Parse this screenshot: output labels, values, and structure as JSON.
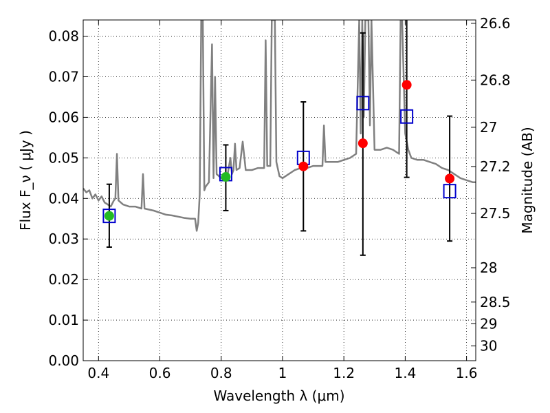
{
  "chart_data": {
    "type": "scatter",
    "xlabel": "Wavelength  λ (μm)",
    "ylabel": "Flux  F_ν  ( μJy )",
    "ylabel_right": "Magnitude (AB)",
    "xlim": [
      0.35,
      1.63
    ],
    "ylim": [
      0.0,
      0.084
    ],
    "grid": true,
    "x_ticks": [
      {
        "value": 0.4,
        "label": "0.4"
      },
      {
        "value": 0.6,
        "label": "0.6"
      },
      {
        "value": 0.8,
        "label": "0.8"
      },
      {
        "value": 1.0,
        "label": "1"
      },
      {
        "value": 1.2,
        "label": "1.2"
      },
      {
        "value": 1.4,
        "label": "1.4"
      },
      {
        "value": 1.6,
        "label": "1.6"
      }
    ],
    "y_ticks": [
      {
        "value": 0.0,
        "label": "0.00"
      },
      {
        "value": 0.01,
        "label": "0.01"
      },
      {
        "value": 0.02,
        "label": "0.02"
      },
      {
        "value": 0.03,
        "label": "0.03"
      },
      {
        "value": 0.04,
        "label": "0.04"
      },
      {
        "value": 0.05,
        "label": "0.05"
      },
      {
        "value": 0.06,
        "label": "0.06"
      },
      {
        "value": 0.07,
        "label": "0.07"
      },
      {
        "value": 0.08,
        "label": "0.08"
      }
    ],
    "right_ticks": [
      {
        "value": 26.6,
        "label": "26.6"
      },
      {
        "value": 26.8,
        "label": "26.8"
      },
      {
        "value": 27.0,
        "label": "27"
      },
      {
        "value": 27.2,
        "label": "27.2"
      },
      {
        "value": 27.5,
        "label": "27.5"
      },
      {
        "value": 28.0,
        "label": "28"
      },
      {
        "value": 28.5,
        "label": "28.5"
      },
      {
        "value": 29.0,
        "label": "29"
      },
      {
        "value": 30.0,
        "label": "30"
      }
    ],
    "series": [
      {
        "kind": "line",
        "color": "#808080",
        "points": [
          [
            0.35,
            0.0425
          ],
          [
            0.36,
            0.0415
          ],
          [
            0.37,
            0.042
          ],
          [
            0.38,
            0.04
          ],
          [
            0.39,
            0.041
          ],
          [
            0.4,
            0.0395
          ],
          [
            0.41,
            0.0405
          ],
          [
            0.42,
            0.039
          ],
          [
            0.43,
            0.0385
          ],
          [
            0.44,
            0.038
          ],
          [
            0.45,
            0.0395
          ],
          [
            0.455,
            0.04
          ],
          [
            0.46,
            0.051
          ],
          [
            0.465,
            0.0395
          ],
          [
            0.48,
            0.0385
          ],
          [
            0.5,
            0.038
          ],
          [
            0.52,
            0.038
          ],
          [
            0.54,
            0.0375
          ],
          [
            0.545,
            0.046
          ],
          [
            0.55,
            0.0375
          ],
          [
            0.58,
            0.037
          ],
          [
            0.6,
            0.0365
          ],
          [
            0.62,
            0.036
          ],
          [
            0.64,
            0.0358
          ],
          [
            0.66,
            0.0355
          ],
          [
            0.68,
            0.0352
          ],
          [
            0.7,
            0.035
          ],
          [
            0.715,
            0.035
          ],
          [
            0.72,
            0.032
          ],
          [
            0.725,
            0.034
          ],
          [
            0.73,
            0.041
          ],
          [
            0.735,
            0.084
          ],
          [
            0.74,
            0.084
          ],
          [
            0.745,
            0.042
          ],
          [
            0.75,
            0.043
          ],
          [
            0.76,
            0.044
          ],
          [
            0.77,
            0.078
          ],
          [
            0.775,
            0.045
          ],
          [
            0.78,
            0.07
          ],
          [
            0.785,
            0.046
          ],
          [
            0.8,
            0.045
          ],
          [
            0.82,
            0.0455
          ],
          [
            0.83,
            0.05
          ],
          [
            0.835,
            0.046
          ],
          [
            0.84,
            0.047
          ],
          [
            0.845,
            0.0535
          ],
          [
            0.85,
            0.047
          ],
          [
            0.86,
            0.0475
          ],
          [
            0.87,
            0.054
          ],
          [
            0.88,
            0.047
          ],
          [
            0.9,
            0.047
          ],
          [
            0.92,
            0.0475
          ],
          [
            0.94,
            0.0475
          ],
          [
            0.945,
            0.079
          ],
          [
            0.95,
            0.048
          ],
          [
            0.96,
            0.048
          ],
          [
            0.965,
            0.084
          ],
          [
            0.97,
            0.084
          ],
          [
            0.975,
            0.084
          ],
          [
            0.98,
            0.049
          ],
          [
            0.99,
            0.0455
          ],
          [
            1.0,
            0.045
          ],
          [
            1.02,
            0.046
          ],
          [
            1.04,
            0.047
          ],
          [
            1.06,
            0.0475
          ],
          [
            1.08,
            0.0475
          ],
          [
            1.1,
            0.048
          ],
          [
            1.12,
            0.048
          ],
          [
            1.13,
            0.048
          ],
          [
            1.135,
            0.058
          ],
          [
            1.14,
            0.049
          ],
          [
            1.16,
            0.049
          ],
          [
            1.18,
            0.049
          ],
          [
            1.2,
            0.0495
          ],
          [
            1.22,
            0.05
          ],
          [
            1.24,
            0.051
          ],
          [
            1.25,
            0.084
          ],
          [
            1.255,
            0.056
          ],
          [
            1.26,
            0.084
          ],
          [
            1.265,
            0.06
          ],
          [
            1.27,
            0.084
          ],
          [
            1.28,
            0.084
          ],
          [
            1.285,
            0.058
          ],
          [
            1.29,
            0.084
          ],
          [
            1.3,
            0.052
          ],
          [
            1.32,
            0.052
          ],
          [
            1.34,
            0.0525
          ],
          [
            1.36,
            0.052
          ],
          [
            1.38,
            0.051
          ],
          [
            1.385,
            0.084
          ],
          [
            1.39,
            0.084
          ],
          [
            1.4,
            0.056
          ],
          [
            1.41,
            0.052
          ],
          [
            1.42,
            0.05
          ],
          [
            1.44,
            0.0495
          ],
          [
            1.46,
            0.0495
          ],
          [
            1.48,
            0.049
          ],
          [
            1.5,
            0.0485
          ],
          [
            1.52,
            0.0475
          ],
          [
            1.54,
            0.047
          ],
          [
            1.56,
            0.046
          ],
          [
            1.58,
            0.045
          ],
          [
            1.6,
            0.0445
          ],
          [
            1.62,
            0.044
          ],
          [
            1.63,
            0.044
          ]
        ]
      },
      {
        "kind": "error_bars",
        "color": "#000000",
        "points": [
          {
            "x": 0.435,
            "low": 0.028,
            "high": 0.0435
          },
          {
            "x": 0.815,
            "low": 0.037,
            "high": 0.0532
          },
          {
            "x": 1.068,
            "low": 0.032,
            "high": 0.0638
          },
          {
            "x": 1.262,
            "low": 0.026,
            "high": 0.0808
          },
          {
            "x": 1.405,
            "low": 0.0452,
            "high": 0.084
          },
          {
            "x": 1.545,
            "low": 0.0295,
            "high": 0.0603
          }
        ]
      },
      {
        "kind": "open_squares",
        "color": "#0000cc",
        "points": [
          [
            0.435,
            0.0357
          ],
          [
            0.815,
            0.046
          ],
          [
            1.068,
            0.05
          ],
          [
            1.262,
            0.0635
          ],
          [
            1.405,
            0.0602
          ],
          [
            1.545,
            0.0418
          ]
        ]
      },
      {
        "kind": "filled_circles",
        "color": "#22bb22",
        "points": [
          [
            0.435,
            0.0357
          ],
          [
            0.815,
            0.0453
          ]
        ]
      },
      {
        "kind": "filled_circles",
        "color": "#ff0000",
        "points": [
          [
            1.068,
            0.0479
          ],
          [
            1.262,
            0.0536
          ],
          [
            1.405,
            0.068
          ],
          [
            1.545,
            0.0449
          ]
        ]
      }
    ]
  }
}
